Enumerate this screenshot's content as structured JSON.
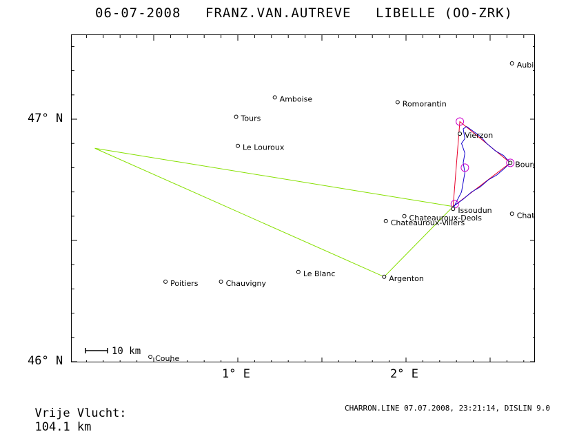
{
  "title": {
    "date": "06-07-2008",
    "pilot": "FRANZ.VAN.AUTREVE",
    "glider": "LIBELLE (OO-ZRK)"
  },
  "axes": {
    "lat_labels": [
      "47° N",
      "46° N"
    ],
    "lon_labels": [
      "1° E",
      "2° E"
    ]
  },
  "scale_bar": "10 km",
  "cities": [
    {
      "name": "Aubigny",
      "lon": 2.63,
      "lat": 47.23
    },
    {
      "name": "Amboise",
      "lon": 1.22,
      "lat": 47.09
    },
    {
      "name": "Romorantin",
      "lon": 1.95,
      "lat": 47.07
    },
    {
      "name": "Tours",
      "lon": 0.99,
      "lat": 47.01
    },
    {
      "name": "Vierzon",
      "lon": 2.32,
      "lat": 46.94
    },
    {
      "name": "Le Louroux",
      "lon": 1.0,
      "lat": 46.89
    },
    {
      "name": "Bourges",
      "lon": 2.62,
      "lat": 46.82
    },
    {
      "name": "Issoudun",
      "lon": 2.28,
      "lat": 46.63
    },
    {
      "name": "Chateaurouneuf-s-C",
      "lon": 2.63,
      "lat": 46.61
    },
    {
      "name": "Chateauroux-Deols",
      "lon": 1.99,
      "lat": 46.6
    },
    {
      "name": "Chateauroux-Villers",
      "lon": 1.88,
      "lat": 46.58
    },
    {
      "name": "Le Blanc",
      "lon": 1.36,
      "lat": 46.37
    },
    {
      "name": "Argenton",
      "lon": 1.87,
      "lat": 46.35
    },
    {
      "name": "Poitiers",
      "lon": 0.57,
      "lat": 46.33
    },
    {
      "name": "Chauvigny",
      "lon": 0.9,
      "lat": 46.33
    },
    {
      "name": "Couhe",
      "lon": 0.48,
      "lat": 46.02
    }
  ],
  "declared_task": [
    [
      2.28,
      46.64
    ],
    [
      2.32,
      46.99
    ],
    [
      2.62,
      46.82
    ],
    [
      2.28,
      46.64
    ]
  ],
  "flown_route": [
    [
      0.15,
      46.88
    ],
    [
      2.28,
      46.64
    ],
    [
      1.87,
      46.35
    ],
    [
      0.15,
      46.88
    ]
  ],
  "turnpoints": [
    [
      2.32,
      46.99
    ],
    [
      2.35,
      46.8
    ],
    [
      2.62,
      46.82
    ],
    [
      2.29,
      46.65
    ]
  ],
  "track": [
    [
      2.28,
      46.63
    ],
    [
      2.3,
      46.66
    ],
    [
      2.33,
      46.7
    ],
    [
      2.34,
      46.74
    ],
    [
      2.35,
      46.78
    ],
    [
      2.34,
      46.82
    ],
    [
      2.35,
      46.86
    ],
    [
      2.33,
      46.9
    ],
    [
      2.35,
      46.92
    ],
    [
      2.34,
      46.96
    ],
    [
      2.36,
      46.97
    ],
    [
      2.4,
      46.95
    ],
    [
      2.44,
      46.93
    ],
    [
      2.48,
      46.9
    ],
    [
      2.53,
      46.87
    ],
    [
      2.58,
      46.85
    ],
    [
      2.62,
      46.82
    ],
    [
      2.59,
      46.8
    ],
    [
      2.54,
      46.77
    ],
    [
      2.49,
      46.75
    ],
    [
      2.44,
      46.72
    ],
    [
      2.39,
      46.7
    ],
    [
      2.34,
      46.67
    ],
    [
      2.3,
      46.65
    ],
    [
      2.28,
      46.64
    ]
  ],
  "colors": {
    "task": "#e8002a",
    "route": "#86e000",
    "track": "#1100cc",
    "turnpoint": "#cc00cc"
  },
  "footer": {
    "distance_label": "Vrije Vlucht:",
    "distance_value": "104.1 km",
    "credits": "CHARRON.LINE 07.07.2008, 23:21:14, DISLIN 9.0"
  }
}
